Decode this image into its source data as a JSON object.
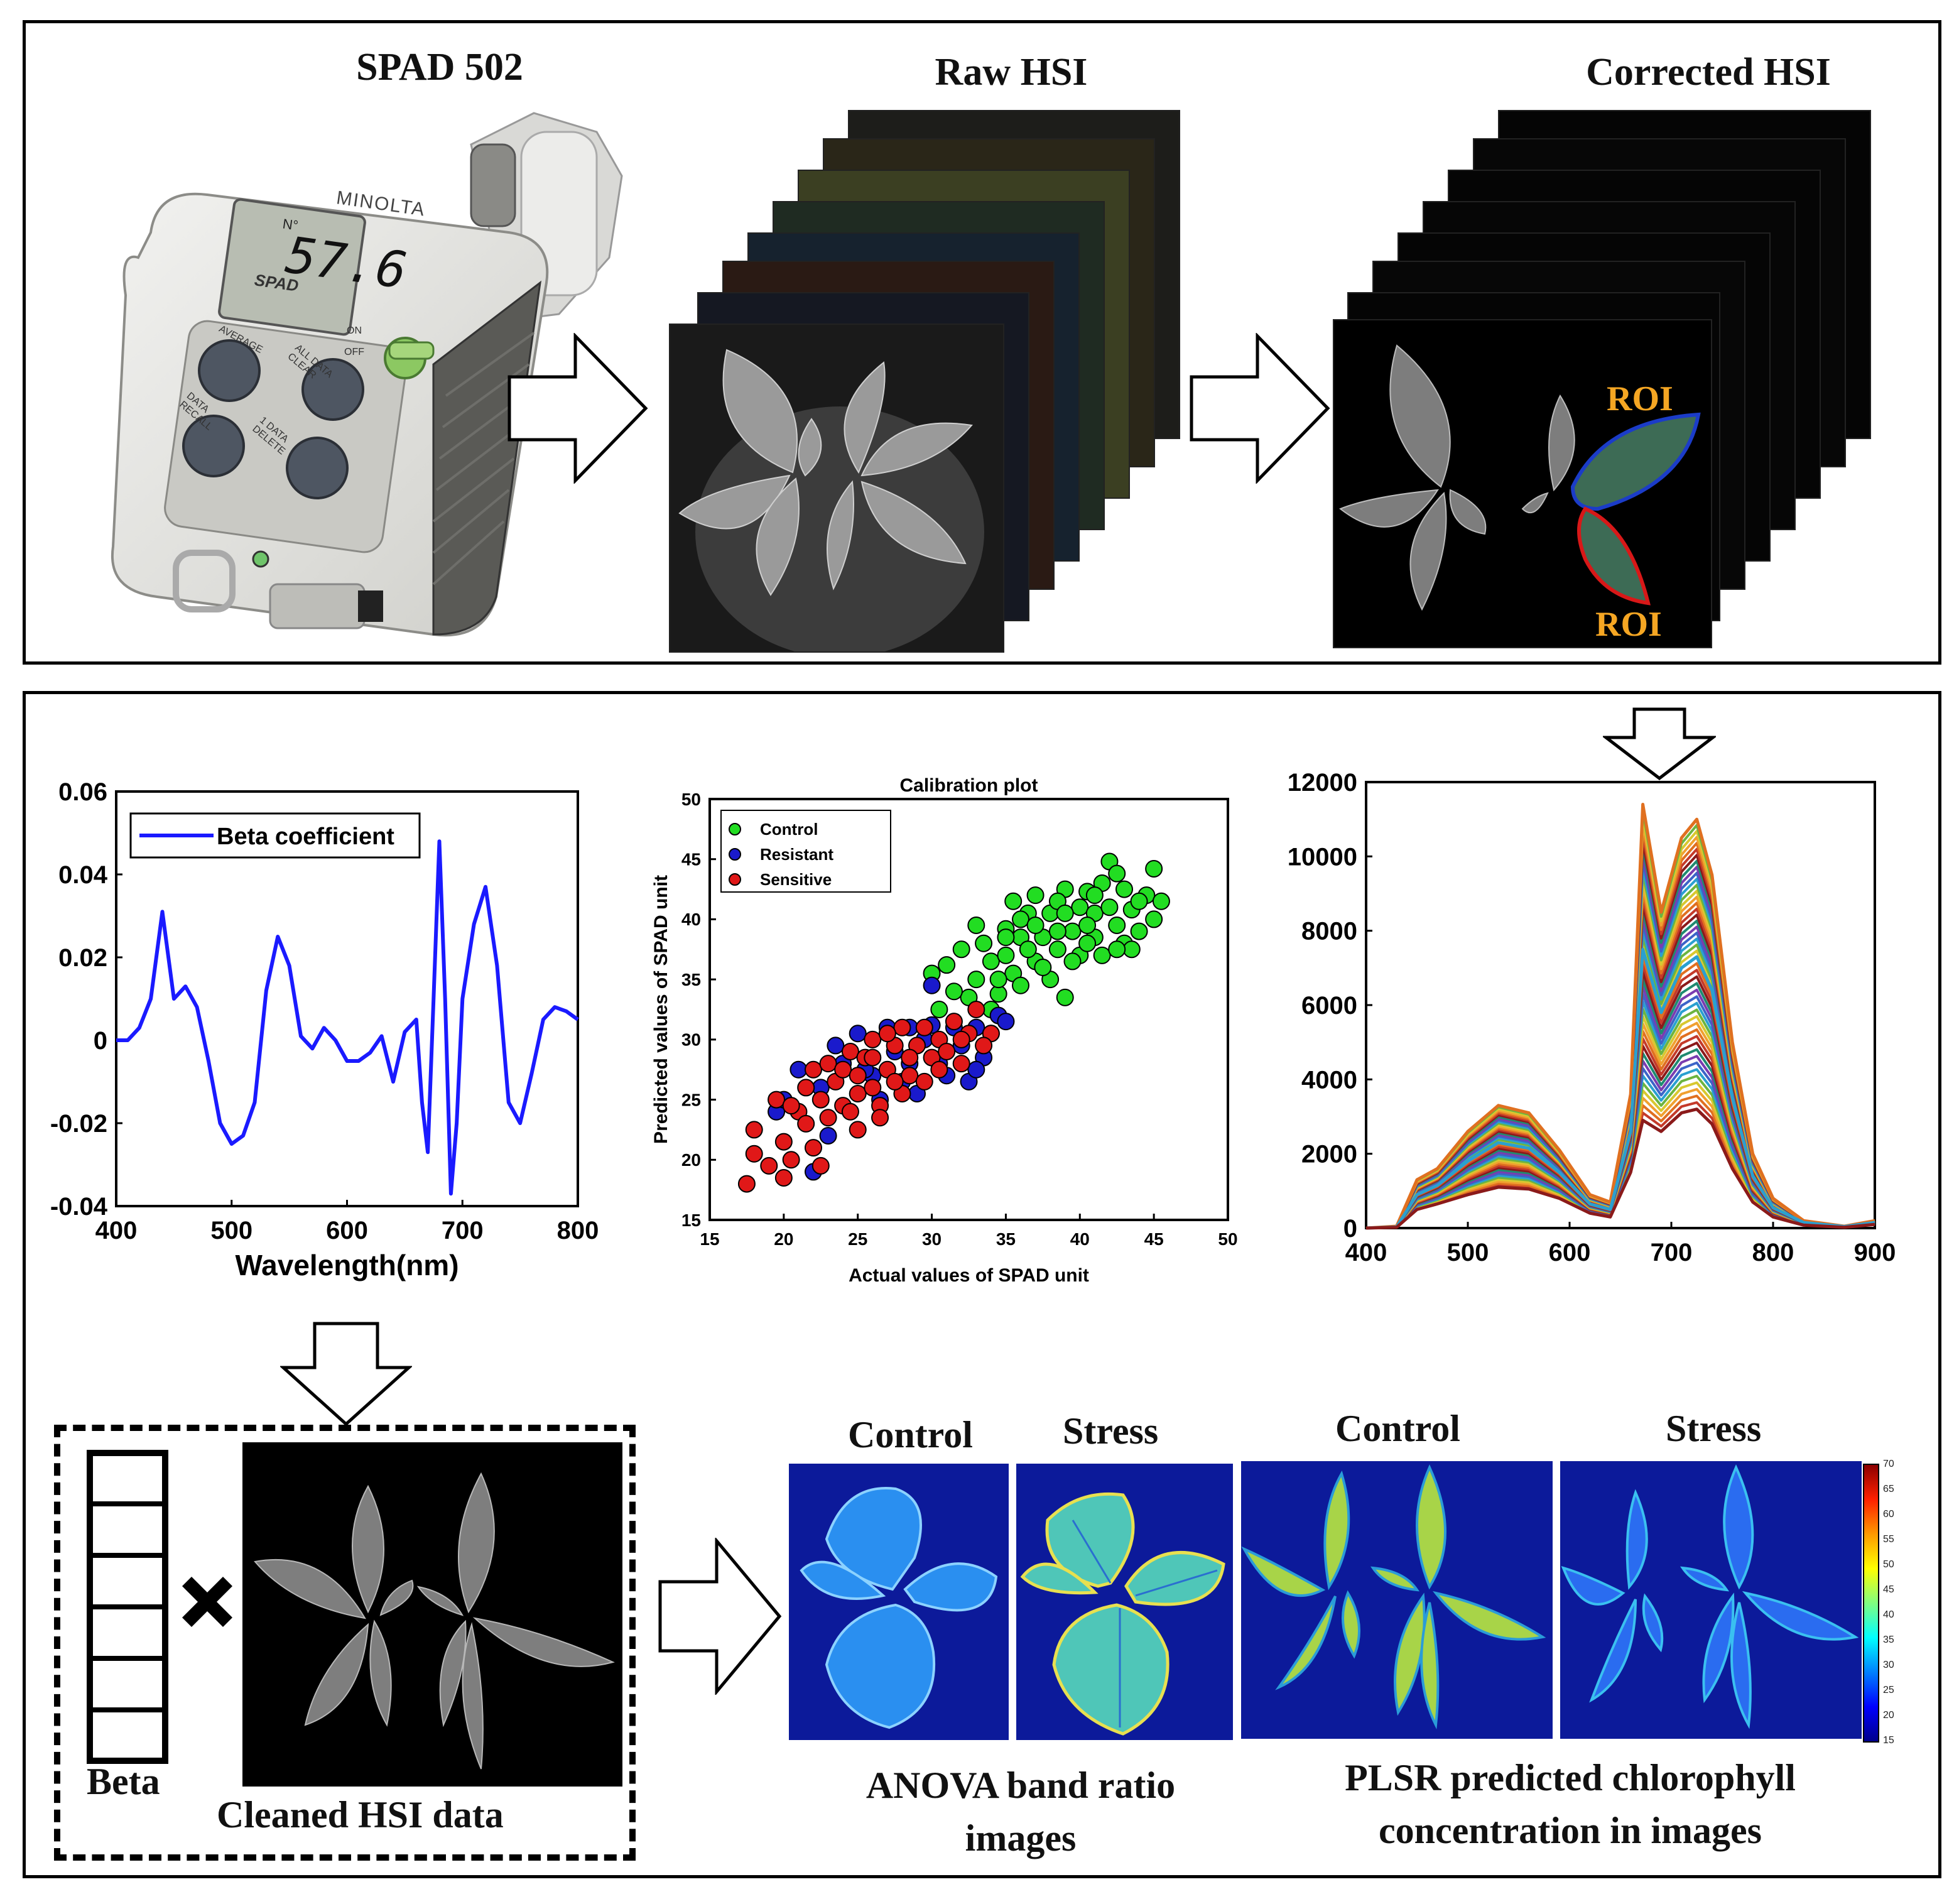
{
  "top": {
    "spad_title": "SPAD 502",
    "raw_title": "Raw HSI",
    "corrected_title": "Corrected HSI",
    "roi_upper": "ROI",
    "roi_lower": "ROI",
    "meter": {
      "brand": "MINOLTA",
      "model": "SPAD",
      "reading": "57.6",
      "no_label": "N°",
      "btn_average": "AVERAGE",
      "btn_all_clear": "ALL DATA CLEAR",
      "btn_recall": "DATA RECALL",
      "btn_delete": "1 DATA DELETE",
      "switch_on": "ON",
      "switch_off": "OFF"
    }
  },
  "bottom": {
    "beta_label": "Beta",
    "cleaned_label": "Cleaned HSI data",
    "anova_control": "Control",
    "anova_stress": "Stress",
    "plsr_control": "Control",
    "plsr_stress": "Stress",
    "anova_caption_line1": "ANOVA band ratio",
    "anova_caption_line2": "images",
    "plsr_caption_line1": "PLSR predicted chlorophyll",
    "plsr_caption_line2": "concentration in images",
    "colorbar_ticks": [
      "70",
      "65",
      "60",
      "55",
      "50",
      "45",
      "40",
      "35",
      "30",
      "25",
      "20",
      "15"
    ]
  },
  "chart_data": [
    {
      "type": "line",
      "name": "beta-coefficient-plot",
      "title": "",
      "xlabel": "Wavelength(nm)",
      "ylabel": "",
      "xlim": [
        400,
        800
      ],
      "ylim": [
        -0.04,
        0.06
      ],
      "xticks": [
        "400",
        "500",
        "600",
        "700",
        "800"
      ],
      "yticks": [
        "0.06",
        "0.04",
        "0.02",
        "0",
        "-0.02",
        "-0.04"
      ],
      "legend": "top-left",
      "series": [
        {
          "name": "Beta coefficient",
          "color": "#1a1aff",
          "x": [
            400,
            410,
            420,
            430,
            440,
            450,
            460,
            470,
            480,
            490,
            500,
            510,
            520,
            530,
            540,
            550,
            560,
            570,
            580,
            590,
            600,
            610,
            620,
            630,
            640,
            650,
            660,
            665,
            670,
            675,
            680,
            685,
            690,
            695,
            700,
            710,
            720,
            730,
            740,
            750,
            760,
            770,
            780,
            790,
            800
          ],
          "y": [
            0,
            0,
            0.003,
            0.01,
            0.031,
            0.01,
            0.013,
            0.008,
            -0.005,
            -0.02,
            -0.025,
            -0.023,
            -0.015,
            0.012,
            0.025,
            0.018,
            0.001,
            -0.002,
            0.003,
            0,
            -0.005,
            -0.005,
            -0.003,
            0.001,
            -0.01,
            0.002,
            0.005,
            -0.015,
            -0.027,
            0.01,
            0.048,
            0.01,
            -0.037,
            -0.02,
            0.01,
            0.028,
            0.037,
            0.018,
            -0.015,
            -0.02,
            -0.008,
            0.005,
            0.008,
            0.007,
            0.005
          ]
        }
      ]
    },
    {
      "type": "scatter",
      "name": "calibration-plot",
      "title": "Calibration plot",
      "xlabel": "Actual values of SPAD unit",
      "ylabel": "Predicted values of SPAD unit",
      "xlim": [
        15,
        50
      ],
      "ylim": [
        15,
        50
      ],
      "xticks": [
        "15",
        "20",
        "25",
        "30",
        "35",
        "40",
        "45",
        "50"
      ],
      "yticks": [
        "50",
        "45",
        "40",
        "35",
        "30",
        "25",
        "20",
        "15"
      ],
      "legend": "top-left",
      "series": [
        {
          "name": "Control",
          "color": "#22dd22",
          "points": [
            [
              30,
              35.5
            ],
            [
              31,
              36.2
            ],
            [
              32,
              37.5
            ],
            [
              33,
              35
            ],
            [
              33.5,
              38
            ],
            [
              34,
              36.5
            ],
            [
              34.5,
              33.8
            ],
            [
              35,
              37
            ],
            [
              35,
              39.2
            ],
            [
              35.5,
              35.5
            ],
            [
              36,
              38.5
            ],
            [
              36,
              34.5
            ],
            [
              36.5,
              40.5
            ],
            [
              37,
              36.5
            ],
            [
              37,
              42
            ],
            [
              37.5,
              38.5
            ],
            [
              38,
              35
            ],
            [
              38,
              40.5
            ],
            [
              38.5,
              37.5
            ],
            [
              39,
              42.5
            ],
            [
              39,
              33.5
            ],
            [
              39.5,
              39
            ],
            [
              40,
              41
            ],
            [
              40,
              37
            ],
            [
              40.5,
              42.3
            ],
            [
              41,
              38.5
            ],
            [
              41,
              40.5
            ],
            [
              41.5,
              37
            ],
            [
              42,
              44.8
            ],
            [
              42,
              41
            ],
            [
              42.5,
              39.5
            ],
            [
              43,
              42.5
            ],
            [
              43,
              38
            ],
            [
              43.5,
              40.8
            ],
            [
              44,
              39
            ],
            [
              44.5,
              42
            ],
            [
              45,
              44.2
            ],
            [
              45,
              40
            ],
            [
              45.5,
              41.5
            ],
            [
              32.5,
              33.5
            ],
            [
              34,
              32.5
            ],
            [
              36,
              40
            ],
            [
              37.5,
              36
            ],
            [
              39.5,
              36.5
            ],
            [
              41.5,
              43
            ],
            [
              43.5,
              37.5
            ],
            [
              30.5,
              32.5
            ],
            [
              31.5,
              34
            ],
            [
              33,
              39.5
            ],
            [
              35.5,
              41.5
            ],
            [
              38.5,
              41.5
            ],
            [
              40.5,
              39.5
            ],
            [
              42.5,
              43.8
            ],
            [
              44,
              41.5
            ],
            [
              34.5,
              35
            ],
            [
              36.5,
              37.5
            ],
            [
              38.5,
              39
            ],
            [
              40.5,
              38
            ],
            [
              42.5,
              37.5
            ],
            [
              41,
              42
            ],
            [
              39,
              40.5
            ],
            [
              37,
              39.5
            ],
            [
              35,
              38.5
            ]
          ]
        },
        {
          "name": "Resistant",
          "color": "#1a1acc",
          "points": [
            [
              19.5,
              24
            ],
            [
              20,
              25
            ],
            [
              22,
              19
            ],
            [
              22.5,
              26
            ],
            [
              23,
              22
            ],
            [
              24,
              28
            ],
            [
              25,
              30.5
            ],
            [
              26,
              27
            ],
            [
              26.5,
              25
            ],
            [
              27,
              31
            ],
            [
              27.5,
              29
            ],
            [
              28,
              26.5
            ],
            [
              28.5,
              28
            ],
            [
              29,
              25.5
            ],
            [
              29.5,
              30
            ],
            [
              30,
              34.5
            ],
            [
              30.5,
              28
            ],
            [
              31,
              27
            ],
            [
              31.5,
              31
            ],
            [
              32,
              29.5
            ],
            [
              32.5,
              26.5
            ],
            [
              33,
              31
            ],
            [
              33.5,
              28.5
            ],
            [
              34,
              30.5
            ],
            [
              34.5,
              32
            ],
            [
              35,
              31.5
            ],
            [
              28.5,
              31
            ],
            [
              30,
              31.2
            ],
            [
              25.5,
              27.5
            ],
            [
              23.5,
              29.5
            ],
            [
              21,
              27.5
            ],
            [
              33,
              27.5
            ]
          ]
        },
        {
          "name": "Sensitive",
          "color": "#e01818",
          "points": [
            [
              17.5,
              18
            ],
            [
              18,
              20.5
            ],
            [
              18,
              22.5
            ],
            [
              19,
              19.5
            ],
            [
              19.5,
              25
            ],
            [
              20,
              21.5
            ],
            [
              20,
              18.5
            ],
            [
              20.5,
              20
            ],
            [
              21,
              24
            ],
            [
              21.5,
              26
            ],
            [
              22,
              27.5
            ],
            [
              22,
              21
            ],
            [
              22.5,
              25
            ],
            [
              23,
              28
            ],
            [
              23,
              23.5
            ],
            [
              23.5,
              26.5
            ],
            [
              24,
              24.5
            ],
            [
              24,
              27.5
            ],
            [
              24.5,
              29
            ],
            [
              25,
              25.5
            ],
            [
              25,
              22.5
            ],
            [
              25.5,
              28.5
            ],
            [
              26,
              26
            ],
            [
              26,
              30
            ],
            [
              26.5,
              24.5
            ],
            [
              27,
              27.5
            ],
            [
              27.5,
              29.5
            ],
            [
              28,
              25.5
            ],
            [
              28,
              31
            ],
            [
              28.5,
              27
            ],
            [
              29,
              29.5
            ],
            [
              29.5,
              26.5
            ],
            [
              30,
              28.5
            ],
            [
              30.5,
              30
            ],
            [
              31,
              29
            ],
            [
              31.5,
              31.5
            ],
            [
              32,
              28
            ],
            [
              32.5,
              30.5
            ],
            [
              33,
              32.5
            ],
            [
              34,
              30.5
            ],
            [
              20.5,
              24.5
            ],
            [
              21.5,
              23
            ],
            [
              26.5,
              23.5
            ],
            [
              27.5,
              26.5
            ],
            [
              29.5,
              31
            ],
            [
              33.5,
              29.5
            ],
            [
              22.5,
              19.5
            ],
            [
              24.5,
              24
            ],
            [
              26,
              28.5
            ],
            [
              28.5,
              28.5
            ],
            [
              30.5,
              27.5
            ],
            [
              32,
              30
            ],
            [
              25,
              27
            ],
            [
              27,
              30.5
            ]
          ]
        }
      ]
    },
    {
      "type": "line",
      "name": "reflectance-spectra-plot",
      "title": "",
      "xlabel": "",
      "ylabel": "",
      "xlim": [
        400,
        900
      ],
      "ylim": [
        0,
        12000
      ],
      "xticks": [
        "400",
        "500",
        "600",
        "700",
        "800",
        "900"
      ],
      "yticks": [
        "12000",
        "10000",
        "8000",
        "6000",
        "4000",
        "2000",
        "0"
      ],
      "legend": "none",
      "series": [
        {
          "name": "envelope-max",
          "color": "#e07020",
          "x": [
            400,
            430,
            450,
            470,
            500,
            530,
            560,
            590,
            620,
            640,
            660,
            672,
            690,
            710,
            725,
            740,
            760,
            780,
            800,
            830,
            870,
            900
          ],
          "y": [
            0,
            50,
            1300,
            1600,
            2600,
            3300,
            3100,
            2100,
            900,
            700,
            3600,
            11400,
            8500,
            10500,
            11000,
            9500,
            5000,
            2000,
            800,
            200,
            50,
            200
          ]
        },
        {
          "name": "envelope-mid",
          "color": "#2aa0d0",
          "x": [
            400,
            430,
            450,
            470,
            500,
            530,
            560,
            590,
            620,
            640,
            660,
            672,
            690,
            710,
            725,
            740,
            760,
            780,
            800,
            830,
            870,
            900
          ],
          "y": [
            0,
            30,
            900,
            1150,
            1800,
            2300,
            2150,
            1500,
            650,
            500,
            2600,
            7500,
            5800,
            7000,
            7300,
            6400,
            3500,
            1400,
            550,
            150,
            40,
            150
          ]
        },
        {
          "name": "envelope-min",
          "color": "#8b1a1a",
          "x": [
            400,
            430,
            450,
            470,
            500,
            530,
            560,
            590,
            620,
            640,
            660,
            672,
            690,
            710,
            725,
            740,
            760,
            780,
            800,
            830,
            870,
            900
          ],
          "y": [
            0,
            20,
            500,
            650,
            900,
            1100,
            1050,
            800,
            400,
            300,
            1500,
            2900,
            2600,
            3100,
            3200,
            2800,
            1600,
            700,
            300,
            80,
            20,
            100
          ]
        }
      ]
    }
  ]
}
